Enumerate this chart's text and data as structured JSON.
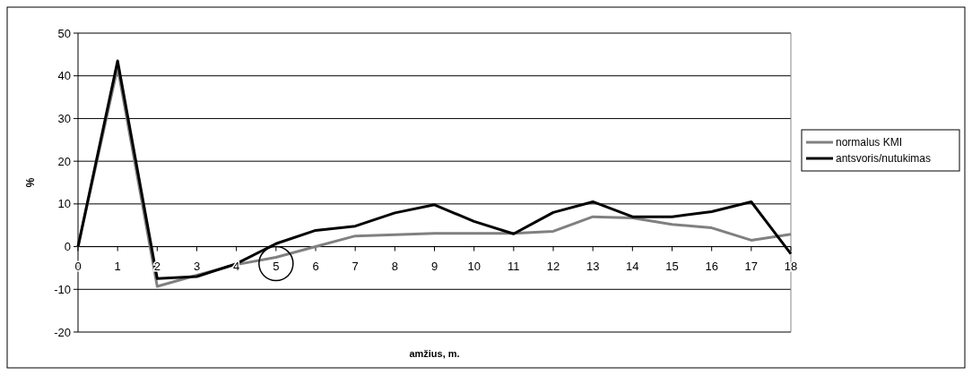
{
  "chart_data": {
    "type": "line",
    "xlabel": "amžius, m.",
    "ylabel": "%",
    "x": [
      0,
      1,
      2,
      3,
      4,
      5,
      6,
      7,
      8,
      9,
      10,
      11,
      12,
      13,
      14,
      15,
      16,
      17,
      18
    ],
    "series": [
      {
        "name": "normalus KMI",
        "color": "#808080",
        "values": [
          0,
          42,
          -9.3,
          -6.7,
          -4.2,
          -2.5,
          0,
          2.5,
          2.8,
          3.1,
          3.1,
          3.1,
          3.6,
          7,
          6.7,
          5.2,
          4.4,
          1.5,
          2.9
        ]
      },
      {
        "name": "antsvoris/nutukimas",
        "color": "#000000",
        "values": [
          0,
          43.5,
          -7.5,
          -7,
          -4,
          0.7,
          3.8,
          4.8,
          7.9,
          9.8,
          5.9,
          3,
          8,
          10.5,
          7,
          7,
          8.2,
          10.5,
          -1.7
        ]
      }
    ],
    "xlim": [
      0,
      18
    ],
    "xticks": [
      0,
      1,
      2,
      3,
      4,
      5,
      6,
      7,
      8,
      9,
      10,
      11,
      12,
      13,
      14,
      15,
      16,
      17,
      18
    ],
    "ylim": [
      -20,
      50
    ],
    "yticks": [
      -20,
      -10,
      0,
      10,
      20,
      30,
      40,
      50
    ],
    "grid": "y",
    "legend": "right",
    "marker": "none",
    "line_style": "solid"
  }
}
